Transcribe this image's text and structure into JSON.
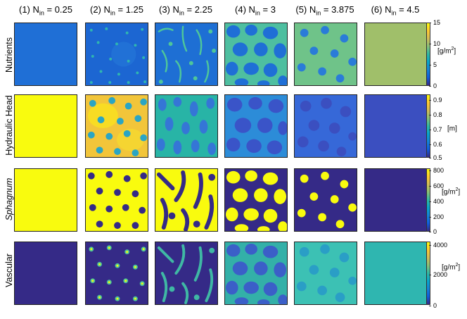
{
  "columns": [
    {
      "pre": "(1) N",
      "sub": "in",
      "post": " = 0.25"
    },
    {
      "pre": "(2) N",
      "sub": "in",
      "post": " = 1.25"
    },
    {
      "pre": "(3) N",
      "sub": "in",
      "post": " = 2.25"
    },
    {
      "pre": "(4) N",
      "sub": "in",
      "post": " = 3"
    },
    {
      "pre": "(5) N",
      "sub": "in",
      "post": " = 3.875"
    },
    {
      "pre": "(6) N",
      "sub": "in",
      "post": " = 4.5"
    }
  ],
  "rows": [
    {
      "label": "Nutrients",
      "unit_pre": "[g/m",
      "unit_sup": "2",
      "unit_post": "]",
      "ticks": [
        "15",
        "10",
        "5",
        "0"
      ]
    },
    {
      "label": "Hydraulic Head",
      "unit_pre": "[m]",
      "unit_sup": "",
      "unit_post": "",
      "ticks": [
        "0.9",
        "0.8",
        "0.7",
        "0.6",
        "0.5"
      ]
    },
    {
      "label": "Sphagnum",
      "unit_pre": "[g/m",
      "unit_sup": "2",
      "unit_post": "]",
      "ticks": [
        "800",
        "600",
        "400",
        "200",
        "0"
      ]
    },
    {
      "label": "Vascular",
      "unit_pre": "[g/m",
      "unit_sup": "2",
      "unit_post": "]",
      "ticks": [
        "4000",
        "2000",
        "0"
      ]
    }
  ],
  "colors": {
    "parula_dark": "#352a87",
    "parula_blue": "#1f6fd6",
    "parula_teal": "#2fb6b0",
    "parula_green": "#a0bf6a",
    "parula_yellow": "#f9fb0e"
  }
}
